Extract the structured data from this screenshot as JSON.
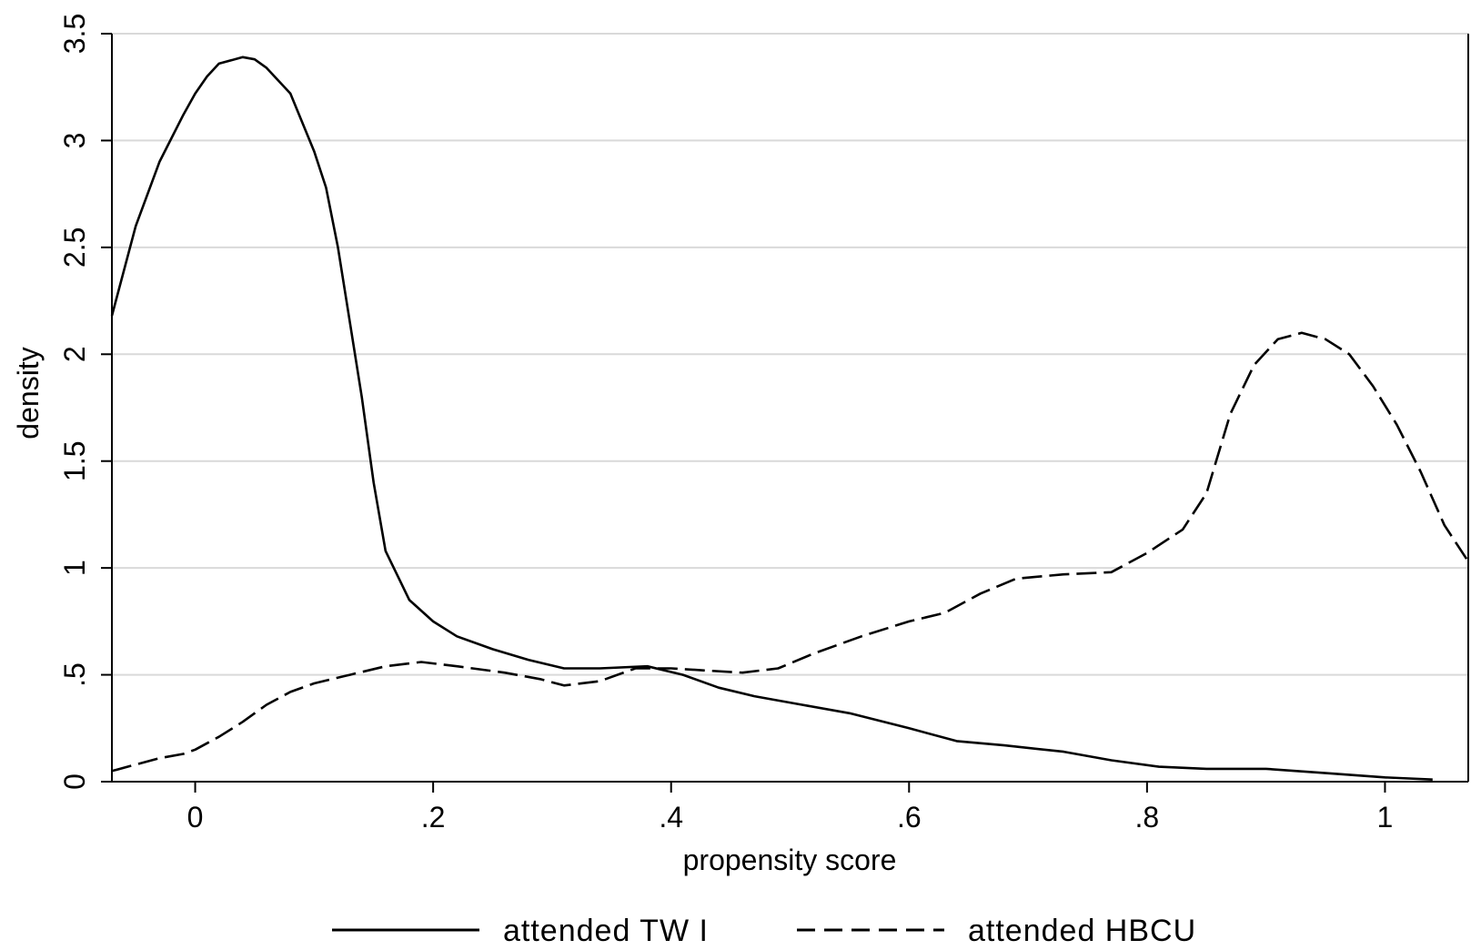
{
  "chart_data": {
    "type": "line",
    "title": "",
    "xlabel": "propensity score",
    "ylabel": "density",
    "xlim": [
      -0.07,
      1.07
    ],
    "ylim": [
      0,
      3.5
    ],
    "grid": true,
    "legend_position": "bottom",
    "x_ticks": [
      {
        "value": 0,
        "label": "0"
      },
      {
        "value": 0.2,
        "label": ".2"
      },
      {
        "value": 0.4,
        "label": ".4"
      },
      {
        "value": 0.6,
        "label": ".6"
      },
      {
        "value": 0.8,
        "label": ".8"
      },
      {
        "value": 1,
        "label": "1"
      }
    ],
    "y_ticks": [
      {
        "value": 0,
        "label": "0"
      },
      {
        "value": 0.5,
        "label": ".5"
      },
      {
        "value": 1,
        "label": "1"
      },
      {
        "value": 1.5,
        "label": "1.5"
      },
      {
        "value": 2,
        "label": "2"
      },
      {
        "value": 2.5,
        "label": "2.5"
      },
      {
        "value": 3,
        "label": "3"
      },
      {
        "value": 3.5,
        "label": "3.5"
      }
    ],
    "series": [
      {
        "name": "attended TW I",
        "style": "solid",
        "color": "#000000",
        "points": [
          [
            -0.07,
            2.18
          ],
          [
            -0.05,
            2.6
          ],
          [
            -0.03,
            2.9
          ],
          [
            -0.01,
            3.12
          ],
          [
            0.0,
            3.22
          ],
          [
            0.01,
            3.3
          ],
          [
            0.02,
            3.36
          ],
          [
            0.04,
            3.39
          ],
          [
            0.05,
            3.38
          ],
          [
            0.06,
            3.34
          ],
          [
            0.08,
            3.22
          ],
          [
            0.1,
            2.95
          ],
          [
            0.11,
            2.78
          ],
          [
            0.12,
            2.5
          ],
          [
            0.13,
            2.15
          ],
          [
            0.14,
            1.8
          ],
          [
            0.15,
            1.4
          ],
          [
            0.16,
            1.08
          ],
          [
            0.18,
            0.85
          ],
          [
            0.2,
            0.75
          ],
          [
            0.22,
            0.68
          ],
          [
            0.25,
            0.62
          ],
          [
            0.28,
            0.57
          ],
          [
            0.31,
            0.53
          ],
          [
            0.34,
            0.53
          ],
          [
            0.38,
            0.54
          ],
          [
            0.41,
            0.5
          ],
          [
            0.44,
            0.44
          ],
          [
            0.47,
            0.4
          ],
          [
            0.51,
            0.36
          ],
          [
            0.55,
            0.32
          ],
          [
            0.6,
            0.25
          ],
          [
            0.64,
            0.19
          ],
          [
            0.68,
            0.17
          ],
          [
            0.73,
            0.14
          ],
          [
            0.77,
            0.1
          ],
          [
            0.81,
            0.07
          ],
          [
            0.85,
            0.06
          ],
          [
            0.9,
            0.06
          ],
          [
            0.95,
            0.04
          ],
          [
            1.0,
            0.02
          ],
          [
            1.04,
            0.01
          ]
        ]
      },
      {
        "name": "attended HBCU",
        "style": "dashed",
        "color": "#000000",
        "points": [
          [
            -0.07,
            0.05
          ],
          [
            -0.05,
            0.08
          ],
          [
            -0.03,
            0.11
          ],
          [
            -0.01,
            0.13
          ],
          [
            0.0,
            0.15
          ],
          [
            0.02,
            0.21
          ],
          [
            0.04,
            0.28
          ],
          [
            0.06,
            0.36
          ],
          [
            0.08,
            0.42
          ],
          [
            0.1,
            0.46
          ],
          [
            0.13,
            0.5
          ],
          [
            0.16,
            0.54
          ],
          [
            0.19,
            0.56
          ],
          [
            0.22,
            0.54
          ],
          [
            0.26,
            0.51
          ],
          [
            0.29,
            0.48
          ],
          [
            0.31,
            0.45
          ],
          [
            0.34,
            0.47
          ],
          [
            0.37,
            0.53
          ],
          [
            0.4,
            0.53
          ],
          [
            0.43,
            0.52
          ],
          [
            0.46,
            0.51
          ],
          [
            0.49,
            0.53
          ],
          [
            0.52,
            0.6
          ],
          [
            0.56,
            0.68
          ],
          [
            0.6,
            0.75
          ],
          [
            0.63,
            0.79
          ],
          [
            0.66,
            0.88
          ],
          [
            0.69,
            0.95
          ],
          [
            0.73,
            0.97
          ],
          [
            0.77,
            0.98
          ],
          [
            0.8,
            1.07
          ],
          [
            0.83,
            1.18
          ],
          [
            0.85,
            1.35
          ],
          [
            0.87,
            1.72
          ],
          [
            0.89,
            1.95
          ],
          [
            0.91,
            2.07
          ],
          [
            0.93,
            2.1
          ],
          [
            0.95,
            2.07
          ],
          [
            0.97,
            2.0
          ],
          [
            0.99,
            1.85
          ],
          [
            1.01,
            1.67
          ],
          [
            1.03,
            1.45
          ],
          [
            1.05,
            1.2
          ],
          [
            1.07,
            1.03
          ]
        ]
      }
    ],
    "legend": [
      {
        "label": "attended TW I",
        "style": "solid"
      },
      {
        "label": "attended HBCU",
        "style": "dashed"
      }
    ]
  }
}
